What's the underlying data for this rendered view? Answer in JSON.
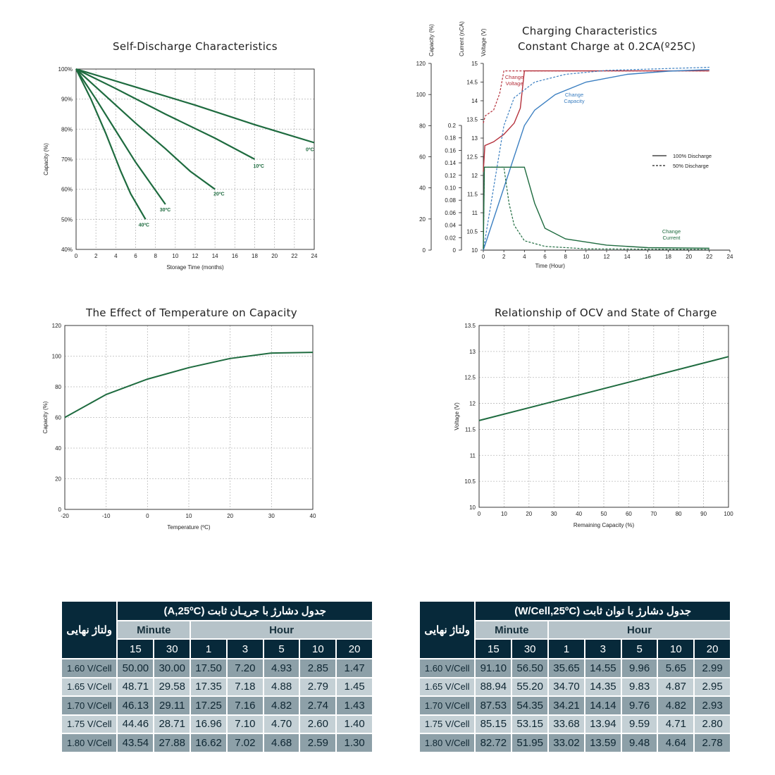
{
  "chart_data": [
    {
      "type": "line",
      "title": "Self-Discharge Characteristics",
      "xlabel": "Storage Time (months)",
      "ylabel": "Capacity (%)",
      "xlim": [
        0,
        24
      ],
      "ylim": [
        40,
        100
      ],
      "x_ticks": [
        0,
        2,
        4,
        6,
        8,
        10,
        12,
        14,
        16,
        18,
        20,
        22,
        24
      ],
      "y_ticks": [
        "40%",
        "50%",
        "60%",
        "70%",
        "80%",
        "90%",
        "100%"
      ],
      "y_tick_values": [
        40,
        50,
        60,
        70,
        80,
        90,
        100
      ],
      "grid": true,
      "color": "#1e6b3f",
      "series": [
        {
          "name": "0ºC",
          "points": [
            [
              0,
              100
            ],
            [
              6,
              94
            ],
            [
              12,
              88
            ],
            [
              18,
              81.5
            ],
            [
              24,
              75.5
            ]
          ]
        },
        {
          "name": "10ºC",
          "points": [
            [
              0,
              100
            ],
            [
              4,
              93.5
            ],
            [
              9,
              85
            ],
            [
              14,
              77
            ],
            [
              18,
              70
            ]
          ]
        },
        {
          "name": "20ºC",
          "points": [
            [
              0,
              100
            ],
            [
              3,
              91
            ],
            [
              6,
              82
            ],
            [
              9,
              73.5
            ],
            [
              11.5,
              66
            ],
            [
              14,
              60
            ]
          ]
        },
        {
          "name": "30ºC",
          "points": [
            [
              0,
              100
            ],
            [
              2,
              90
            ],
            [
              4,
              79.5
            ],
            [
              6,
              69
            ],
            [
              7.5,
              62
            ],
            [
              9,
              55
            ]
          ]
        },
        {
          "name": "40ºC",
          "points": [
            [
              0,
              100
            ],
            [
              1.5,
              90
            ],
            [
              3,
              78.5
            ],
            [
              4.5,
              66
            ],
            [
              5.5,
              58.5
            ],
            [
              7,
              50
            ]
          ]
        }
      ]
    },
    {
      "type": "line",
      "title": "Charging Characteristics",
      "subtitle": "Constant Charge at 0.2CA(º25C)",
      "xlabel": "Time (Hour)",
      "y_axes": [
        {
          "label": "Capacity (%)",
          "range": [
            0,
            120
          ],
          "ticks": [
            "0",
            "20",
            "40",
            "60",
            "80",
            "100",
            "120"
          ]
        },
        {
          "label": "Current (nCA)",
          "range": [
            0,
            0.2
          ],
          "ticks": [
            "0",
            "0.02",
            "0.04",
            "0.06",
            "0.08",
            "0.10",
            "0.12",
            "0.14",
            "0.16",
            "0.18",
            "0.2"
          ]
        },
        {
          "label": "Voltage (V)",
          "range": [
            10,
            15
          ],
          "ticks": [
            "10",
            "10.5",
            "11",
            "11.5",
            "12",
            "12.5",
            "13",
            "13.5",
            "14",
            "14.5",
            "15"
          ]
        }
      ],
      "xlim": [
        0,
        24
      ],
      "x_ticks": [
        0,
        2,
        4,
        6,
        8,
        10,
        12,
        14,
        16,
        18,
        20,
        22,
        24
      ],
      "grid": false,
      "legend": {
        "placement": "right",
        "entries": [
          "100% Discharge",
          "50% Discharge"
        ]
      },
      "annotations": {
        "voltage": "Change Voltage",
        "capacity": "Change Capacity",
        "current": "Change Current"
      },
      "colors": {
        "voltage": "#b5303b",
        "capacity": "#3b7fc1",
        "current": "#1e6b3f"
      },
      "series": [
        {
          "name": "Change Voltage",
          "style": "solid",
          "axis": "voltage",
          "points": [
            [
              0,
              12.1
            ],
            [
              0.15,
              12.8
            ],
            [
              1,
              12.9
            ],
            [
              2,
              13.1
            ],
            [
              3,
              13.4
            ],
            [
              3.6,
              13.8
            ],
            [
              4,
              14.8
            ],
            [
              22,
              14.8
            ]
          ]
        },
        {
          "name": "Change Voltage",
          "style": "dashed",
          "axis": "voltage",
          "points": [
            [
              0,
              13.4
            ],
            [
              0.2,
              13.6
            ],
            [
              1,
              13.75
            ],
            [
              1.6,
              14.2
            ],
            [
              2,
              14.8
            ],
            [
              22,
              14.8
            ]
          ]
        },
        {
          "name": "Change Capacity",
          "style": "solid",
          "axis": "capacity",
          "points": [
            [
              0,
              0
            ],
            [
              4,
              80
            ],
            [
              5,
              90
            ],
            [
              7,
              100
            ],
            [
              10,
              108
            ],
            [
              14,
              113
            ],
            [
              18,
              115
            ],
            [
              22,
              116
            ]
          ]
        },
        {
          "name": "Change Capacity",
          "style": "dashed",
          "axis": "capacity",
          "points": [
            [
              0,
              0
            ],
            [
              2,
              80
            ],
            [
              3,
              98
            ],
            [
              5,
              108
            ],
            [
              8,
              113
            ],
            [
              12,
              115.5
            ],
            [
              22,
              117.5
            ]
          ]
        },
        {
          "name": "Change Current",
          "style": "solid",
          "axis": "current",
          "points": [
            [
              0,
              0.002
            ],
            [
              0.1,
              0.133
            ],
            [
              4,
              0.133
            ],
            [
              5,
              0.075
            ],
            [
              6,
              0.035
            ],
            [
              8,
              0.018
            ],
            [
              12,
              0.008
            ],
            [
              16,
              0.004
            ],
            [
              22,
              0.003
            ]
          ]
        },
        {
          "name": "Change Current",
          "style": "dashed",
          "axis": "current",
          "points": [
            [
              0,
              0.002
            ],
            [
              0.1,
              0.133
            ],
            [
              2,
              0.133
            ],
            [
              2.5,
              0.075
            ],
            [
              3,
              0.04
            ],
            [
              4,
              0.015
            ],
            [
              6,
              0.006
            ],
            [
              10,
              0.002
            ],
            [
              22,
              0.001
            ]
          ]
        }
      ]
    },
    {
      "type": "line",
      "title": "The Effect of Temperature on Capacity",
      "xlabel": "Temperature (ºC)",
      "ylabel": "Capacity (%)",
      "xlim": [
        -20,
        40
      ],
      "ylim": [
        0,
        120
      ],
      "x_ticks": [
        -20,
        -10,
        0,
        10,
        20,
        30,
        40
      ],
      "y_ticks": [
        0,
        20,
        40,
        60,
        80,
        100,
        120
      ],
      "grid": true,
      "color": "#1e6b3f",
      "series": [
        {
          "name": "",
          "points": [
            [
              -20,
              60
            ],
            [
              -10,
              75
            ],
            [
              0,
              85
            ],
            [
              10,
              92.5
            ],
            [
              20,
              98.5
            ],
            [
              30,
              102
            ],
            [
              40,
              102.5
            ]
          ]
        }
      ]
    },
    {
      "type": "line",
      "title": "Relationship of OCV and State of Charge",
      "xlabel": "Remaining Capacity (%)",
      "ylabel": "Voltage (V)",
      "xlim": [
        0,
        100
      ],
      "ylim": [
        10,
        13.5
      ],
      "x_ticks": [
        0,
        10,
        20,
        30,
        40,
        50,
        60,
        70,
        80,
        90,
        100
      ],
      "y_ticks": [
        "10",
        "10.5",
        "11",
        "11.5",
        "12",
        "12.5",
        "13",
        "13.5"
      ],
      "y_tick_values": [
        10,
        10.5,
        11,
        11.5,
        12,
        12.5,
        13,
        13.5
      ],
      "grid": true,
      "color": "#1e6b3f",
      "series": [
        {
          "name": "",
          "points": [
            [
              0,
              11.67
            ],
            [
              100,
              12.9
            ]
          ]
        }
      ]
    }
  ],
  "tables": [
    {
      "title": "جدول دشارژ با جریـان ثابت  (A,25ºC)",
      "side_label": "ولتاژ نهایی",
      "group_minute": "Minute",
      "group_hour": "Hour",
      "columns": [
        "15",
        "30",
        "1",
        "3",
        "5",
        "10",
        "20"
      ],
      "rows": [
        {
          "label": "1.60 V/Cell",
          "values": [
            "50.00",
            "30.00",
            "17.50",
            "7.20",
            "4.93",
            "2.85",
            "1.47"
          ]
        },
        {
          "label": "1.65 V/Cell",
          "values": [
            "48.71",
            "29.58",
            "17.35",
            "7.18",
            "4.88",
            "2.79",
            "1.45"
          ]
        },
        {
          "label": "1.70 V/Cell",
          "values": [
            "46.13",
            "29.11",
            "17.25",
            "7.16",
            "4.82",
            "2.74",
            "1.43"
          ]
        },
        {
          "label": "1.75 V/Cell",
          "values": [
            "44.46",
            "28.71",
            "16.96",
            "7.10",
            "4.70",
            "2.60",
            "1.40"
          ]
        },
        {
          "label": "1.80 V/Cell",
          "values": [
            "43.54",
            "27.88",
            "16.62",
            "7.02",
            "4.68",
            "2.59",
            "1.30"
          ]
        }
      ]
    },
    {
      "title": "جدول دشارژ با توان ثابت  (W/Cell,25ºC)",
      "side_label": "ولتاژ نهایی",
      "group_minute": "Minute",
      "group_hour": "Hour",
      "columns": [
        "15",
        "30",
        "1",
        "3",
        "5",
        "10",
        "20"
      ],
      "rows": [
        {
          "label": "1.60 V/Cell",
          "values": [
            "91.10",
            "56.50",
            "35.65",
            "14.55",
            "9.96",
            "5.65",
            "2.99"
          ]
        },
        {
          "label": "1.65 V/Cell",
          "values": [
            "88.94",
            "55.20",
            "34.70",
            "14.35",
            "9.83",
            "4.87",
            "2.95"
          ]
        },
        {
          "label": "1.70 V/Cell",
          "values": [
            "87.53",
            "54.35",
            "34.21",
            "14.14",
            "9.76",
            "4.82",
            "2.93"
          ]
        },
        {
          "label": "1.75 V/Cell",
          "values": [
            "85.15",
            "53.15",
            "33.68",
            "13.94",
            "9.59",
            "4.71",
            "2.80"
          ]
        },
        {
          "label": "1.80 V/Cell",
          "values": [
            "82.72",
            "51.95",
            "33.02",
            "13.59",
            "9.48",
            "4.64",
            "2.78"
          ]
        }
      ]
    }
  ]
}
